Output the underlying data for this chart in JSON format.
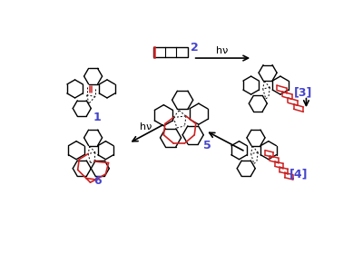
{
  "background": "#ffffff",
  "black": "#000000",
  "red": "#cc2222",
  "blue": "#4444cc",
  "gray": "#666666",
  "label1": "1",
  "label2": "2",
  "label3": "[3]",
  "label4": "[4]",
  "label5": "5",
  "label6": "6",
  "hv": "hν",
  "figsize": [
    4.0,
    2.9
  ],
  "dpi": 100,
  "xlim": [
    0,
    400
  ],
  "ylim": [
    0,
    290
  ]
}
